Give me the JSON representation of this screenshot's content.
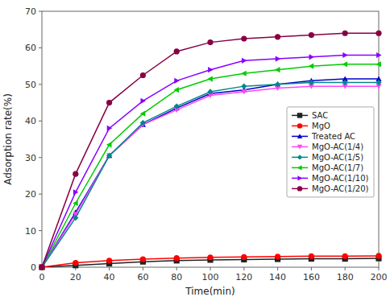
{
  "chart_data": {
    "type": "line",
    "xlabel": "Time(min)",
    "ylabel": "Adsorption rate(%)",
    "x": [
      0,
      20,
      40,
      60,
      80,
      100,
      120,
      140,
      160,
      180,
      200
    ],
    "xlim": [
      0,
      200
    ],
    "ylim": [
      0,
      70
    ],
    "xticks": [
      0,
      20,
      40,
      60,
      80,
      100,
      120,
      140,
      160,
      180,
      200
    ],
    "yticks": [
      0,
      10,
      20,
      30,
      40,
      50,
      60,
      70
    ],
    "grid": false,
    "legend": "right",
    "series": [
      {
        "name": "SAC",
        "color": "#222222",
        "marker": "square",
        "values": [
          0,
          0.5,
          1.0,
          1.5,
          1.8,
          2.0,
          2.1,
          2.2,
          2.3,
          2.3,
          2.4
        ]
      },
      {
        "name": "MgO",
        "color": "#ff0000",
        "marker": "circle",
        "values": [
          0,
          1.2,
          1.8,
          2.2,
          2.5,
          2.7,
          2.8,
          2.9,
          3.0,
          3.0,
          3.1
        ]
      },
      {
        "name": "Treated AC",
        "color": "#0000cc",
        "marker": "triangle-up",
        "values": [
          0,
          15.0,
          30.5,
          39.0,
          43.5,
          47.5,
          48.5,
          50.0,
          51.0,
          51.5,
          51.5
        ]
      },
      {
        "name": "MgO-AC(1/4)",
        "color": "#ff44ff",
        "marker": "triangle-down",
        "values": [
          0,
          14.5,
          30.5,
          39.0,
          43.0,
          47.0,
          48.0,
          49.0,
          49.5,
          49.5,
          49.5
        ]
      },
      {
        "name": "MgO-AC(1/5)",
        "color": "#008888",
        "marker": "diamond",
        "values": [
          0,
          13.5,
          30.5,
          39.5,
          44.0,
          48.0,
          49.5,
          50.0,
          50.5,
          50.5,
          50.5
        ]
      },
      {
        "name": "MgO-AC(1/7)",
        "color": "#00cc00",
        "marker": "triangle-left",
        "values": [
          0,
          17.5,
          33.5,
          42.0,
          48.5,
          51.5,
          53.0,
          54.0,
          55.0,
          55.5,
          55.5
        ]
      },
      {
        "name": "MgO-AC(1/10)",
        "color": "#8800ff",
        "marker": "triangle-right",
        "values": [
          0,
          20.5,
          38.0,
          45.5,
          51.0,
          54.0,
          56.5,
          57.0,
          57.5,
          58.0,
          58.0
        ]
      },
      {
        "name": "MgO-AC(1/20)",
        "color": "#880044",
        "marker": "circle",
        "values": [
          0,
          25.5,
          45.0,
          52.5,
          59.0,
          61.5,
          62.5,
          63.0,
          63.5,
          64.0,
          64.0
        ]
      }
    ]
  }
}
